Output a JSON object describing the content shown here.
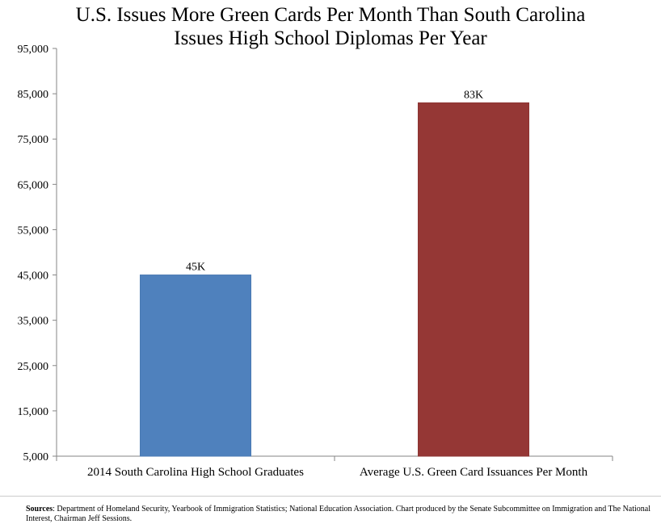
{
  "chart_data": {
    "type": "bar",
    "title_lines": [
      "U.S. Issues More Green Cards Per Month Than South Carolina",
      "Issues High School Diplomas Per Year"
    ],
    "categories": [
      "2014 South Carolina High School Graduates",
      "Average U.S. Green Card Issuances Per Month"
    ],
    "values": [
      45000,
      83000
    ],
    "data_labels": [
      "45K",
      "83K"
    ],
    "colors": [
      "#4f81bd",
      "#953735"
    ],
    "ylim": [
      5000,
      95000
    ],
    "yticks": [
      5000,
      15000,
      25000,
      35000,
      45000,
      55000,
      65000,
      75000,
      85000,
      95000
    ],
    "ytick_labels": [
      "5,000",
      "15,000",
      "25,000",
      "35,000",
      "45,000",
      "55,000",
      "65,000",
      "75,000",
      "85,000",
      "95,000"
    ],
    "xlabel": "",
    "ylabel": "",
    "grid": false,
    "legend": "none"
  },
  "sources": {
    "label": "Sources",
    "text": ": Department of Homeland Security, Yearbook of Immigration Statistics; National Education Association. Chart produced by the Senate Subcommittee on Immigration and The National Interest, Chairman Jeff Sessions."
  }
}
